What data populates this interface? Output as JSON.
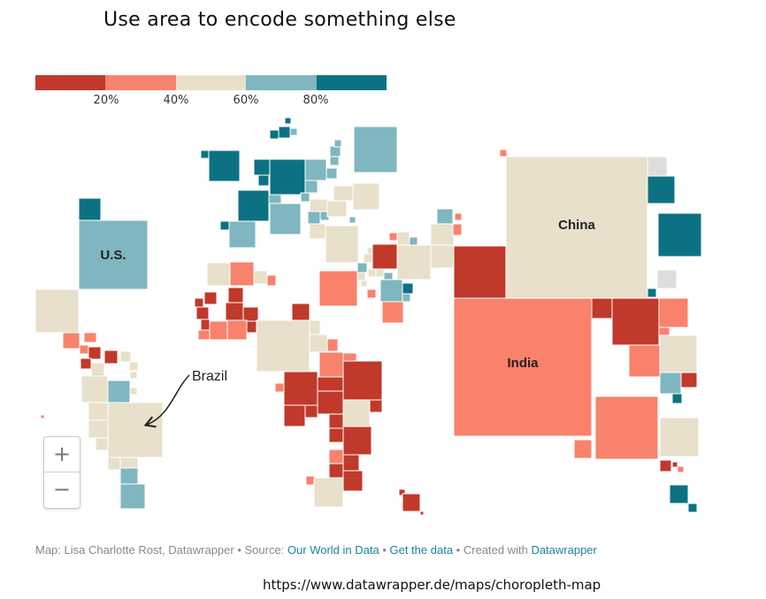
{
  "title": "Use area to encode something else",
  "legend": {
    "colors": [
      "#c0392b",
      "#f8826c",
      "#e8e0cb",
      "#7fb6c0",
      "#0c7283"
    ],
    "tick_labels": [
      "20%",
      "40%",
      "60%",
      "80%"
    ]
  },
  "labels": {
    "us": "U.S.",
    "china": "China",
    "india": "India",
    "brazil": "Brazil"
  },
  "zoom": {
    "in_label": "+",
    "out_label": "−"
  },
  "credit": {
    "prefix": "Map: Lisa Charlotte Rost, Datawrapper",
    "sep1": " • Source: ",
    "source": "Our World in Data",
    "sep2": " • ",
    "get_data": "Get the data",
    "sep3": " • Created with ",
    "created_with": "Datawrapper"
  },
  "url": "https://www.datawrapper.de/maps/choropleth-map"
}
